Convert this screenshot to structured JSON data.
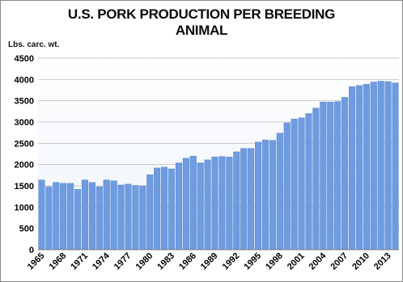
{
  "title_line1": "U.S. PORK PRODUCTION PER BREEDING",
  "title_line2": "ANIMAL",
  "units_label": "Lbs. carc. wt.",
  "colors": {
    "bar": "#6f9be0",
    "bar_edge": "#4f7fc8",
    "plot_bg_top": "#ffffff",
    "plot_bg_bottom": "#eef3fb",
    "grid": "#c9c9c9",
    "axis_text": "#000000"
  },
  "chart_data": {
    "type": "bar",
    "title": "U.S. PORK PRODUCTION PER BREEDING ANIMAL",
    "ylabel": "Lbs. carc. wt.",
    "xlabel": "",
    "ylim": [
      0,
      4500
    ],
    "yticks": [
      0,
      500,
      1000,
      1500,
      2000,
      2500,
      3000,
      3500,
      4000,
      4500
    ],
    "grid": true,
    "legend": "none",
    "categories": [
      "1965",
      "1966",
      "1967",
      "1968",
      "1969",
      "1970",
      "1971",
      "1972",
      "1973",
      "1974",
      "1975",
      "1976",
      "1977",
      "1978",
      "1979",
      "1980",
      "1981",
      "1982",
      "1983",
      "1984",
      "1985",
      "1986",
      "1987",
      "1988",
      "1989",
      "1990",
      "1991",
      "1992",
      "1993",
      "1994",
      "1995",
      "1996",
      "1997",
      "1998",
      "1999",
      "2000",
      "2001",
      "2002",
      "2003",
      "2004",
      "2005",
      "2006",
      "2007",
      "2008",
      "2009",
      "2010",
      "2011",
      "2012",
      "2013",
      "2014"
    ],
    "tick_labels": [
      "1965",
      "1968",
      "1971",
      "1974",
      "1977",
      "1980",
      "1983",
      "1986",
      "1989",
      "1992",
      "1995",
      "1998",
      "2001",
      "2004",
      "2007",
      "2010",
      "2013"
    ],
    "values": [
      1640,
      1480,
      1580,
      1560,
      1560,
      1420,
      1640,
      1580,
      1480,
      1640,
      1620,
      1520,
      1540,
      1510,
      1500,
      1760,
      1920,
      1940,
      1900,
      2040,
      2150,
      2200,
      2040,
      2110,
      2180,
      2190,
      2180,
      2300,
      2380,
      2380,
      2530,
      2580,
      2570,
      2740,
      2980,
      3070,
      3100,
      3200,
      3330,
      3470,
      3470,
      3480,
      3580,
      3830,
      3860,
      3890,
      3940,
      3960,
      3950,
      3920
    ]
  }
}
